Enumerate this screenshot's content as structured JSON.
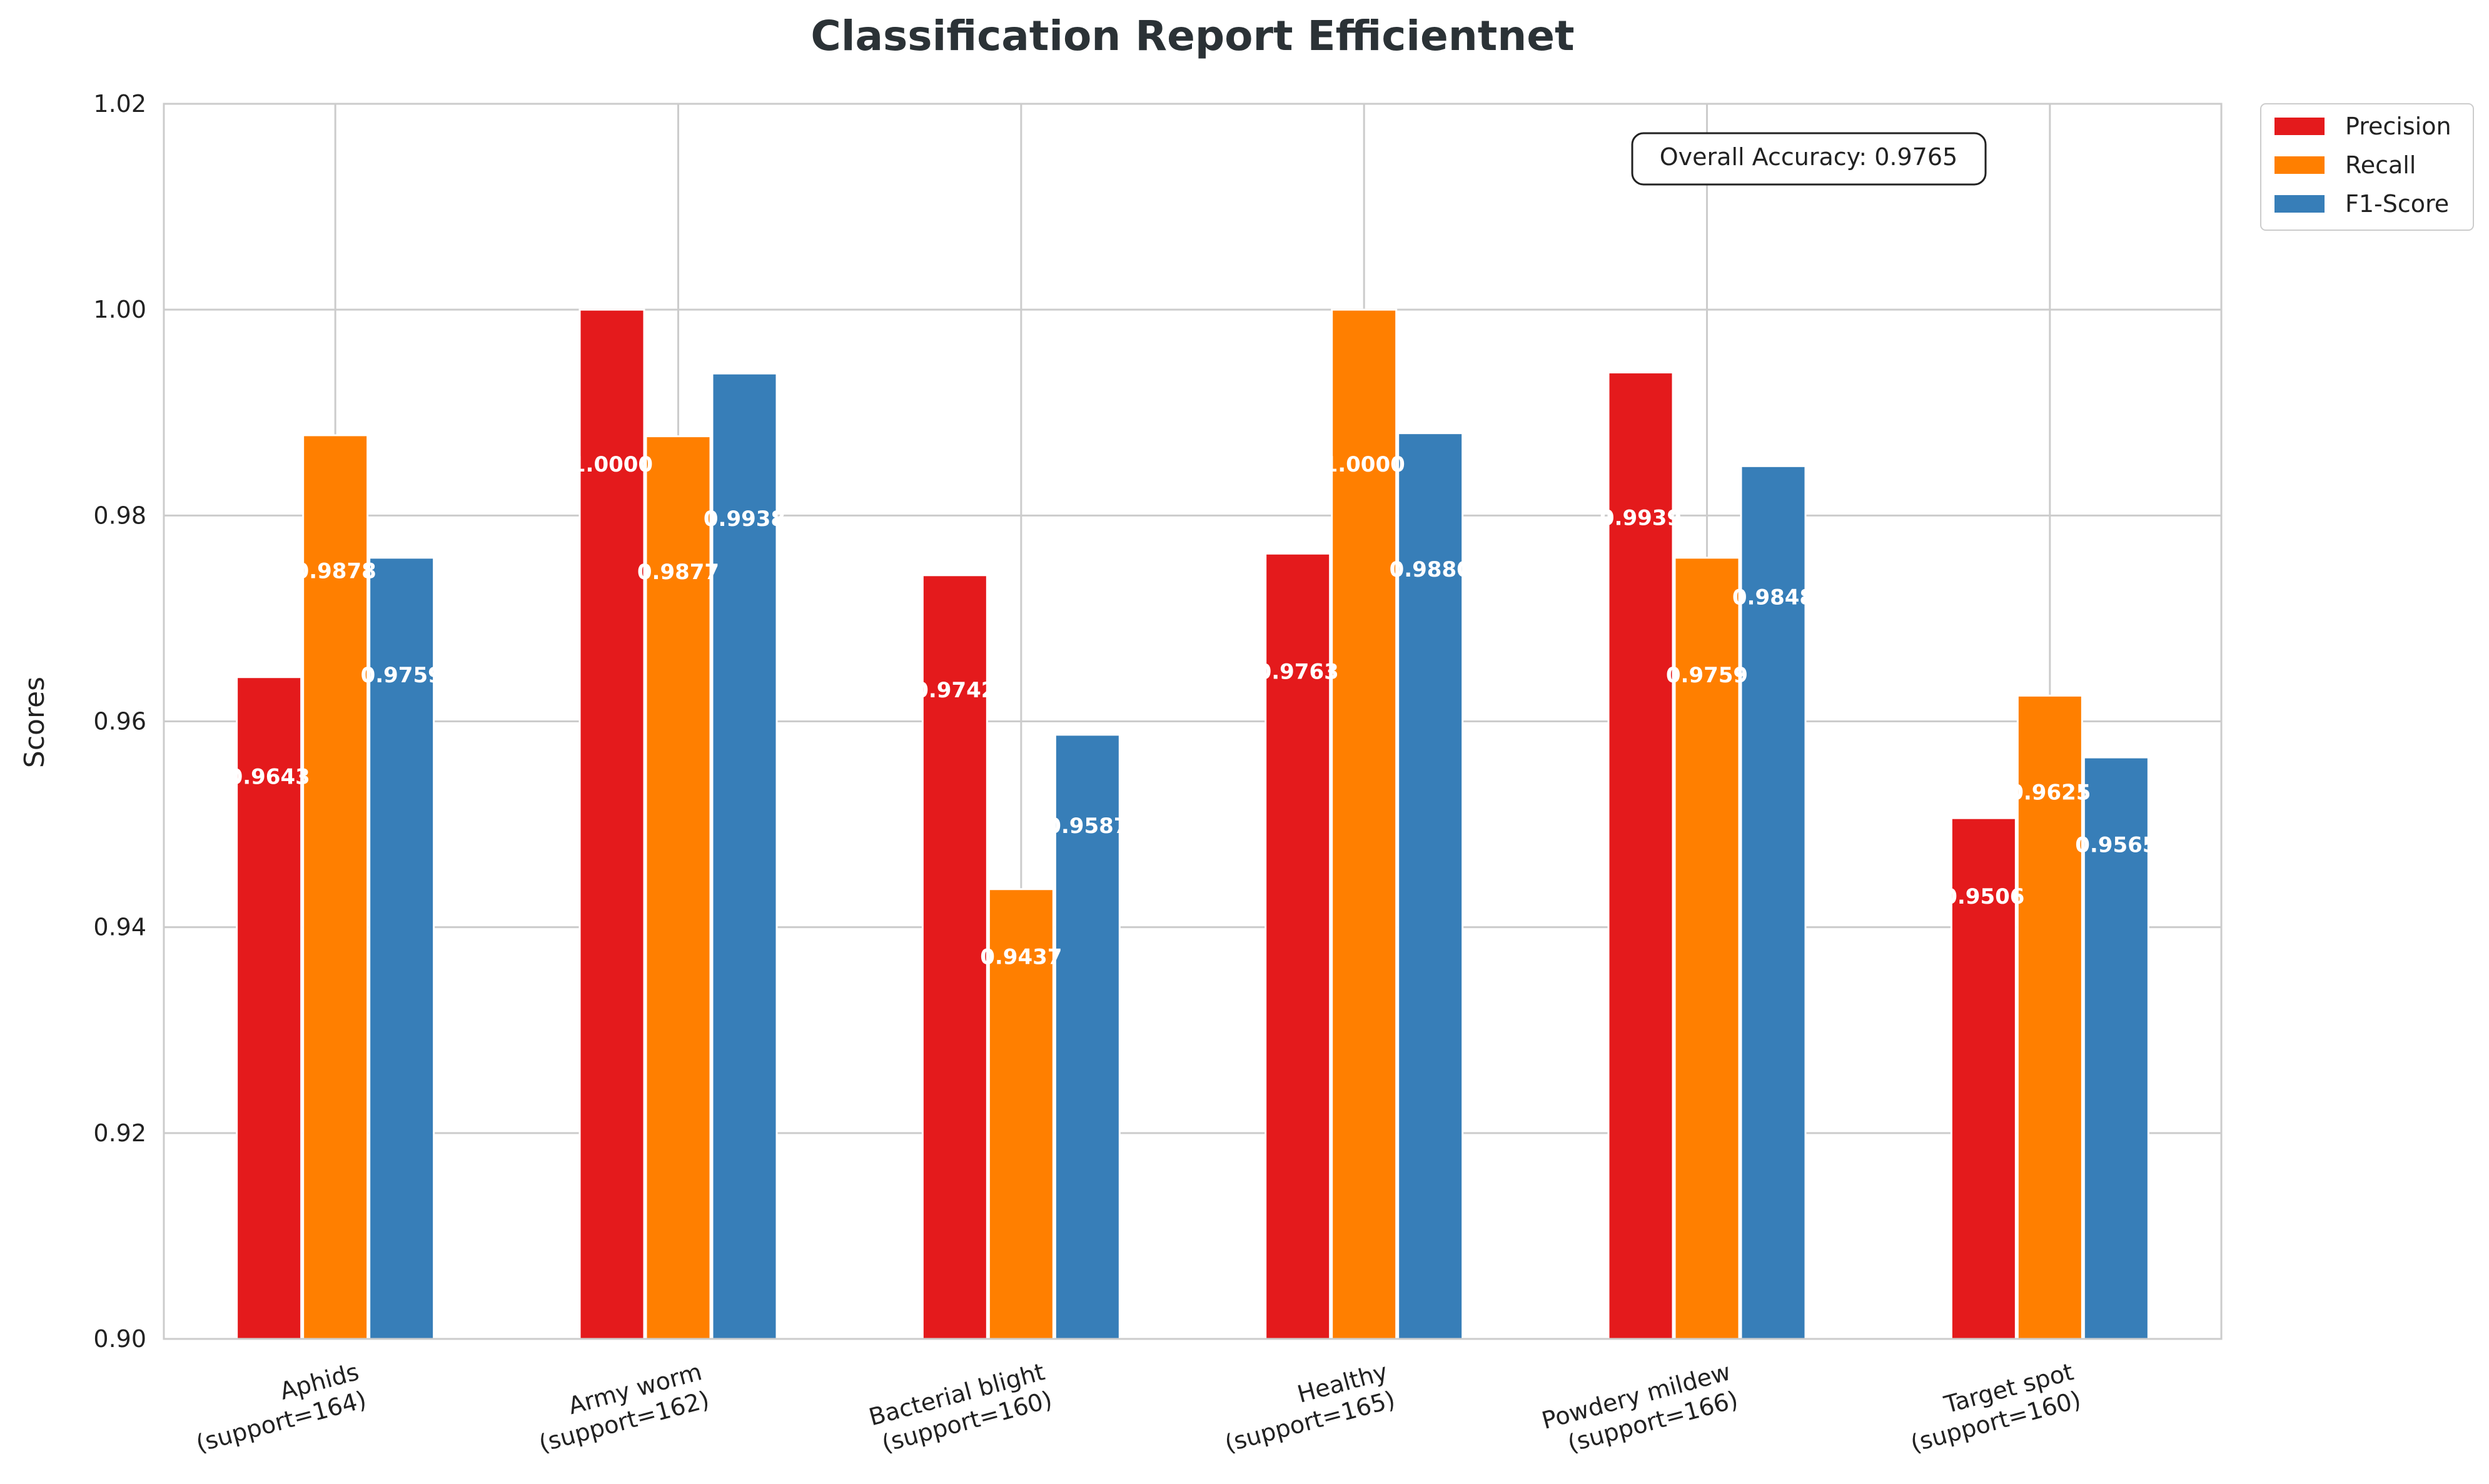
{
  "chart_data": {
    "type": "bar",
    "title": "Classification Report Efficientnet",
    "ylabel": "Scores",
    "xlabel": "",
    "ylim": [
      0.9,
      1.02
    ],
    "yticks": [
      "0.90",
      "0.92",
      "0.94",
      "0.96",
      "0.98",
      "1.00",
      "1.02"
    ],
    "categories": [
      [
        "Aphids",
        "(support=164)"
      ],
      [
        "Army worm",
        "(support=162)"
      ],
      [
        "Bacterial blight",
        "(support=160)"
      ],
      [
        "Healthy",
        "(support=165)"
      ],
      [
        "Powdery mildew",
        "(support=166)"
      ],
      [
        "Target spot",
        "(support=160)"
      ]
    ],
    "series": [
      {
        "name": "Precision",
        "color": "#e41a1c",
        "values": [
          0.9643,
          1.0,
          0.9742,
          0.9763,
          0.9939,
          0.9506
        ],
        "labels": [
          "0.9643",
          "1.0000",
          "0.9742",
          "0.9763",
          "0.9939",
          "0.9506"
        ]
      },
      {
        "name": "Recall",
        "color": "#ff7f00",
        "values": [
          0.9878,
          0.9877,
          0.9437,
          1.0,
          0.9759,
          0.9625
        ],
        "labels": [
          "0.9878",
          "0.9877",
          "0.9437",
          "1.0000",
          "0.9759",
          "0.9625"
        ]
      },
      {
        "name": "F1-Score",
        "color": "#377eb8",
        "values": [
          0.9759,
          0.9938,
          0.9587,
          0.988,
          0.9848,
          0.9565
        ],
        "labels": [
          "0.9759",
          "0.9938",
          "0.9587",
          "0.9880",
          "0.9848",
          "0.9565"
        ]
      }
    ],
    "annotation": "Overall Accuracy: 0.9765",
    "grid": true,
    "legend_position": "outside-top-right"
  }
}
